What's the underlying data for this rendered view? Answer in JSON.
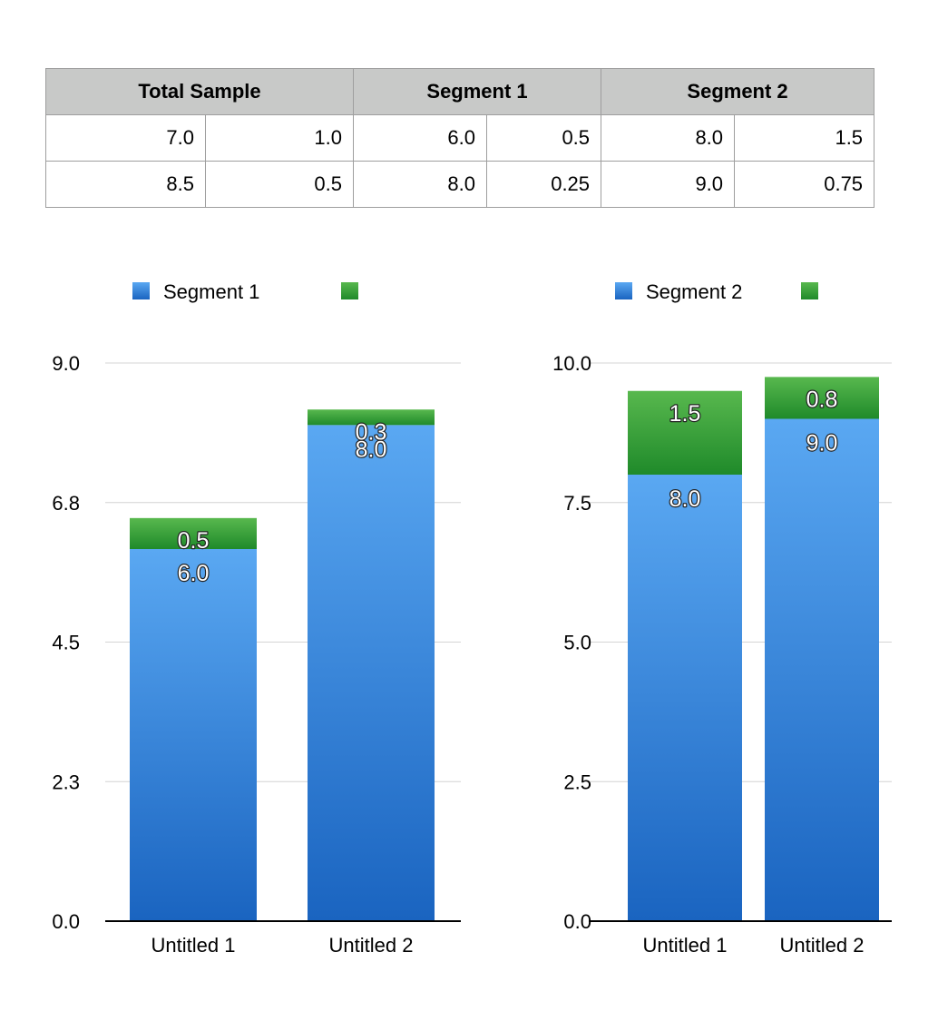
{
  "table": {
    "headers": [
      "Total Sample",
      "Segment 1",
      "Segment 2"
    ],
    "rows": [
      [
        "7.0",
        "1.0",
        "6.0",
        "0.5",
        "8.0",
        "1.5"
      ],
      [
        "8.5",
        "0.5",
        "8.0",
        "0.25",
        "9.0",
        "0.75"
      ]
    ]
  },
  "colors": {
    "blue_top": "#5aa8f2",
    "blue_bottom": "#1a64c0",
    "green_top": "#58b84e",
    "green_bottom": "#1f8a2a",
    "grid": "#d4d4d4",
    "axis": "#000000"
  },
  "chart_data": [
    {
      "type": "bar",
      "stacked": true,
      "categories": [
        "Untitled 1",
        "Untitled 2"
      ],
      "series": [
        {
          "name": "Segment 1",
          "values": [
            6.0,
            8.0
          ],
          "labels": [
            "6.0",
            "8.0"
          ],
          "color": "blue"
        },
        {
          "name": "",
          "values": [
            0.5,
            0.25
          ],
          "labels": [
            "0.5",
            "0.3"
          ],
          "color": "green"
        }
      ],
      "ylim": [
        0,
        9.0
      ],
      "yticks": [
        "0.0",
        "2.3",
        "4.5",
        "6.8",
        "9.0"
      ],
      "ytick_values": [
        0,
        2.25,
        4.5,
        6.75,
        9.0
      ],
      "grid": true,
      "legend": "top"
    },
    {
      "type": "bar",
      "stacked": true,
      "categories": [
        "Untitled 1",
        "Untitled 2"
      ],
      "series": [
        {
          "name": "Segment 2",
          "values": [
            8.0,
            9.0
          ],
          "labels": [
            "8.0",
            "9.0"
          ],
          "color": "blue"
        },
        {
          "name": "",
          "values": [
            1.5,
            0.75
          ],
          "labels": [
            "1.5",
            "0.8"
          ],
          "color": "green"
        }
      ],
      "ylim": [
        0,
        10.0
      ],
      "yticks": [
        "0.0",
        "2.5",
        "5.0",
        "7.5",
        "10.0"
      ],
      "ytick_values": [
        0,
        2.5,
        5.0,
        7.5,
        10.0
      ],
      "grid": true,
      "legend": "top"
    }
  ]
}
